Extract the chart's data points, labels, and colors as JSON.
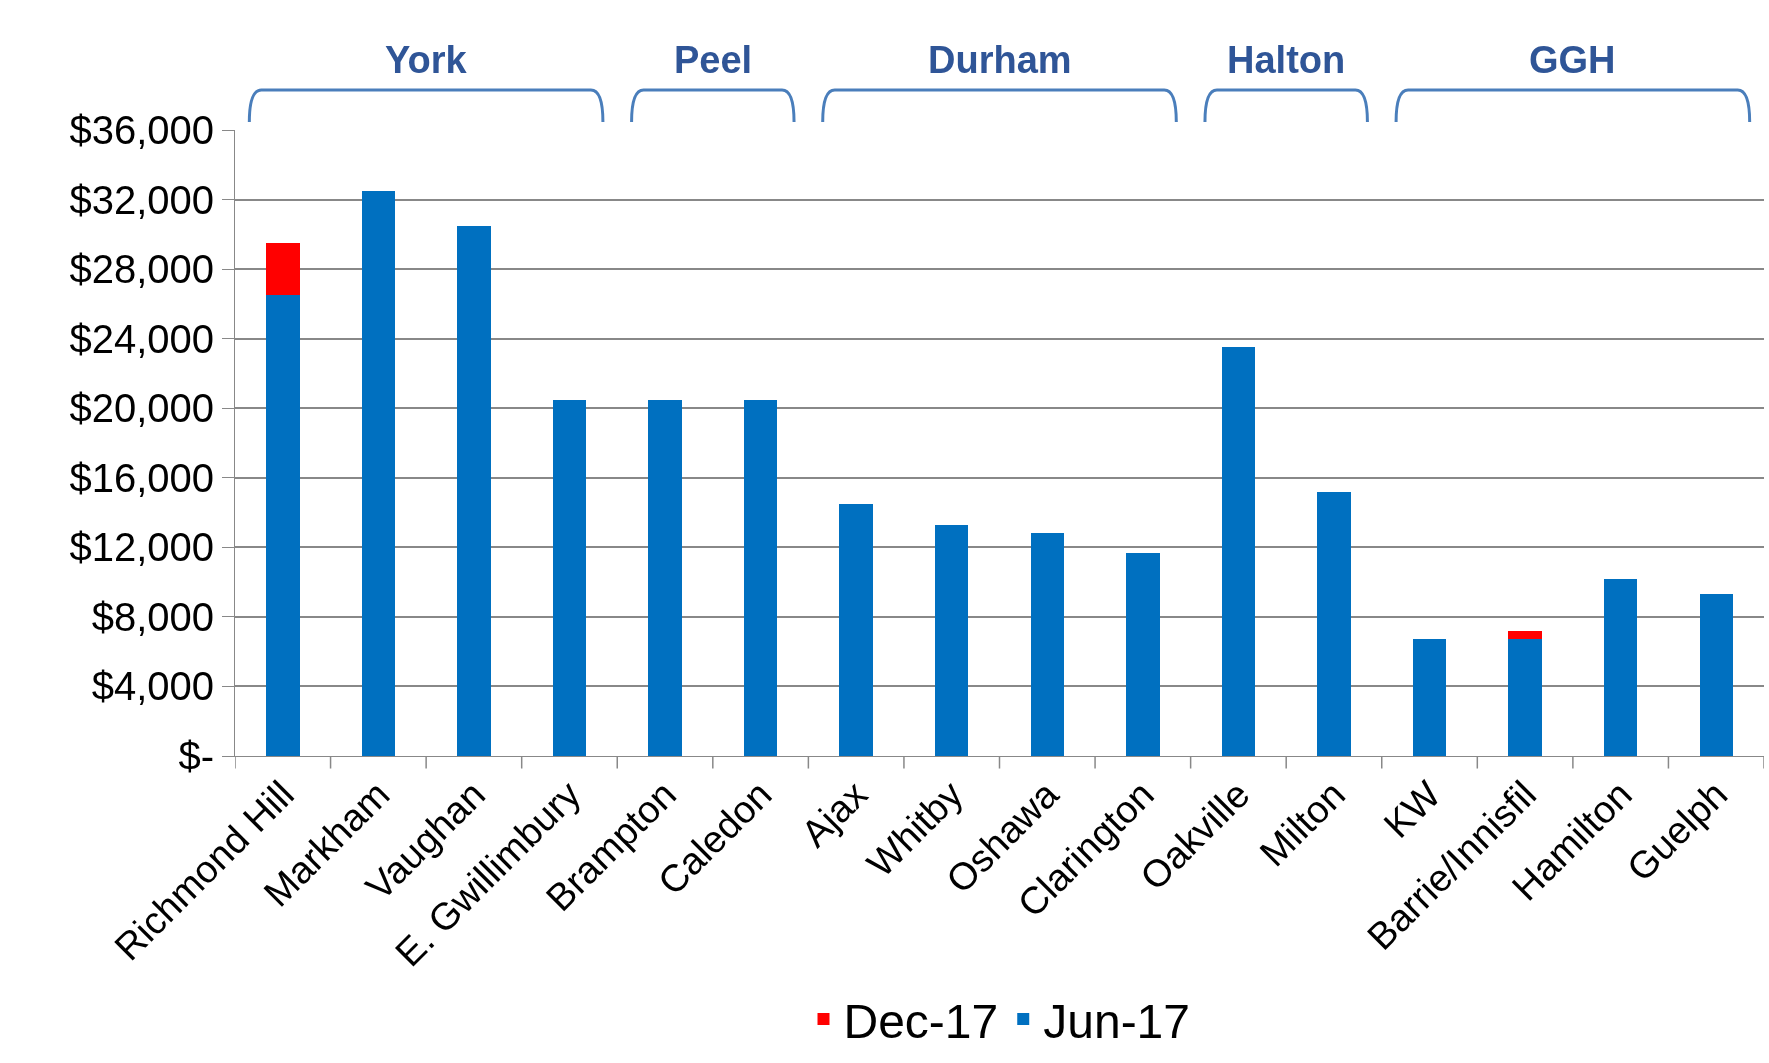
{
  "chart_data": {
    "type": "bar",
    "stacked": true,
    "categories": [
      "Richmond Hill",
      "Markham",
      "Vaughan",
      "E. Gwillimbury",
      "Brampton",
      "Caledon",
      "Ajax",
      "Whitby",
      "Oshawa",
      "Clarington",
      "Oakville",
      "Milton",
      "KW",
      "Barrie/Innisfil",
      "Hamilton",
      "Guelph"
    ],
    "series": [
      {
        "name": "Jun-17",
        "color": "#0070c0",
        "values": [
          26500,
          32500,
          30500,
          20500,
          20500,
          20500,
          14500,
          13300,
          12800,
          11700,
          23500,
          15200,
          6700,
          6700,
          10200,
          9300
        ]
      },
      {
        "name": "Dec-17",
        "color": "#ff0000",
        "values": [
          3000,
          null,
          null,
          null,
          null,
          null,
          null,
          null,
          null,
          null,
          null,
          null,
          null,
          500,
          null,
          null
        ]
      }
    ],
    "ylim": [
      0,
      36000
    ],
    "yticks": [
      {
        "value": 0,
        "label": "$-"
      },
      {
        "value": 4000,
        "label": "$4,000"
      },
      {
        "value": 8000,
        "label": "$8,000"
      },
      {
        "value": 12000,
        "label": "$12,000"
      },
      {
        "value": 16000,
        "label": "$16,000"
      },
      {
        "value": 20000,
        "label": "$20,000"
      },
      {
        "value": 24000,
        "label": "$24,000"
      },
      {
        "value": 28000,
        "label": "$28,000"
      },
      {
        "value": 32000,
        "label": "$32,000"
      },
      {
        "value": 36000,
        "label": "$36,000"
      }
    ],
    "grid": "y",
    "legend": "bottom",
    "annotations": [
      "York",
      "Peel",
      "Durham",
      "Halton",
      "GGH"
    ]
  }
}
